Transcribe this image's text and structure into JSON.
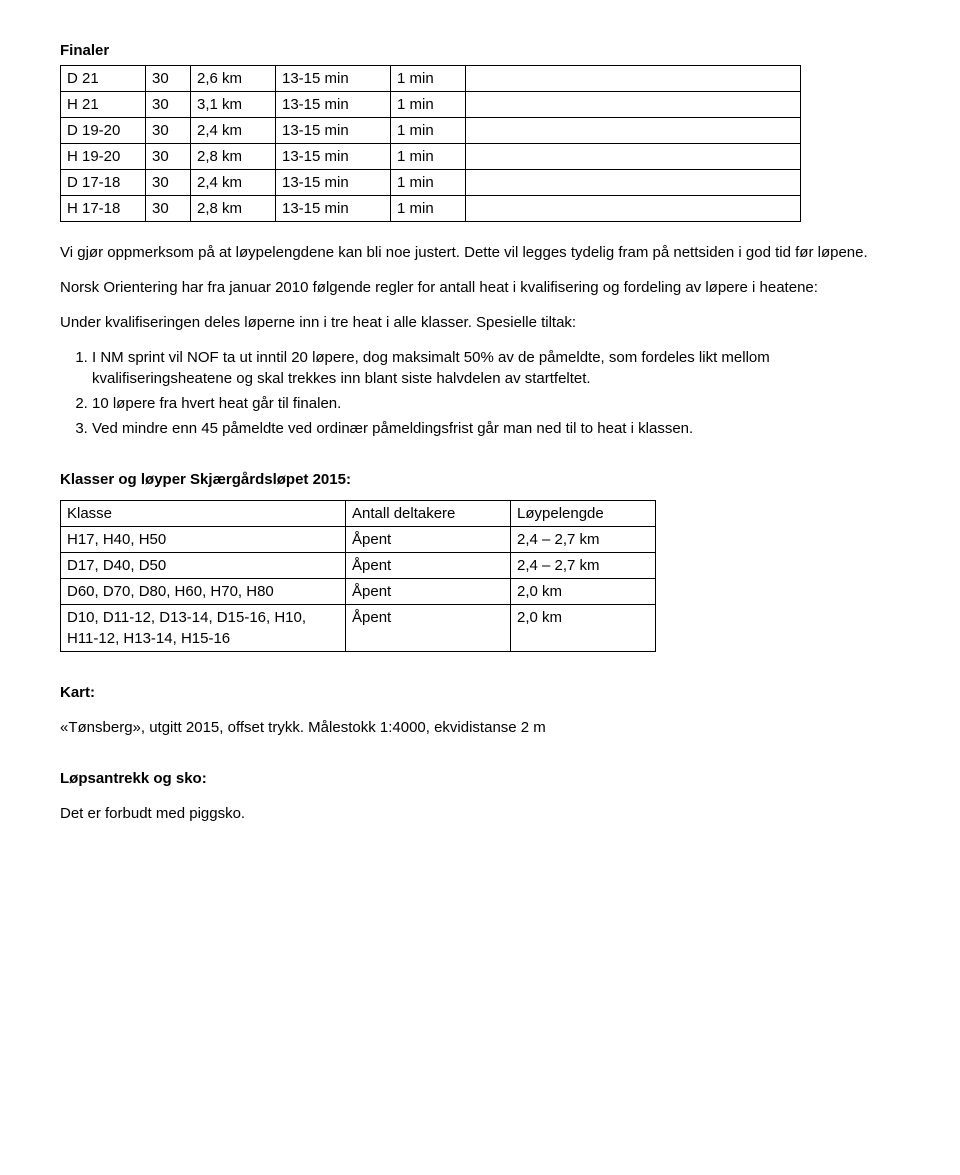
{
  "finaler": {
    "heading": "Finaler",
    "rows": [
      [
        "D 21",
        "30",
        "2,6 km",
        "13-15 min",
        "1 min",
        ""
      ],
      [
        "H 21",
        "30",
        "3,1 km",
        "13-15 min",
        "1 min",
        ""
      ],
      [
        "D 19-20",
        "30",
        "2,4 km",
        "13-15 min",
        "1 min",
        ""
      ],
      [
        "H 19-20",
        "30",
        "2,8 km",
        "13-15 min",
        "1 min",
        ""
      ],
      [
        "D 17-18",
        "30",
        "2,4 km",
        "13-15 min",
        "1 min",
        ""
      ],
      [
        "H 17-18",
        "30",
        "2,8 km",
        "13-15 min",
        "1 min",
        ""
      ]
    ]
  },
  "para1": "Vi gjør oppmerksom på at løypelengdene kan bli noe justert. Dette vil legges tydelig fram på nettsiden i god tid før løpene.",
  "para2": "Norsk Orientering har fra januar 2010 følgende regler for antall heat i kvalifisering og fordeling av løpere i heatene:",
  "para3": "Under kvalifiseringen deles løperne inn i tre heat i alle klasser. Spesielle tiltak:",
  "list": [
    "I NM sprint vil NOF ta ut inntil 20 løpere, dog maksimalt 50% av de påmeldte, som fordeles likt mellom kvalifiseringsheatene og skal trekkes inn blant siste halvdelen av startfeltet.",
    "10 løpere fra hvert heat går til finalen.",
    "Ved mindre enn 45 påmeldte ved ordinær påmeldingsfrist går man ned til to heat i klassen."
  ],
  "klasser": {
    "heading": "Klasser og løyper Skjærgårdsløpet 2015:",
    "header": [
      "Klasse",
      "Antall deltakere",
      "Løypelengde"
    ],
    "rows": [
      [
        "H17, H40, H50",
        "Åpent",
        "2,4 – 2,7 km"
      ],
      [
        "D17, D40, D50",
        "Åpent",
        "2,4 – 2,7 km"
      ],
      [
        "D60, D70, D80, H60, H70, H80",
        "Åpent",
        "2,0 km"
      ],
      [
        "D10, D11-12, D13-14, D15-16, H10, H11-12, H13-14, H15-16",
        "Åpent",
        "2,0 km"
      ]
    ]
  },
  "kart": {
    "heading": "Kart:",
    "text": "«Tønsberg», utgitt 2015, offset trykk. Målestokk 1:4000, ekvidistanse 2 m"
  },
  "sko": {
    "heading": "Løpsantrekk og sko:",
    "text": "Det er forbudt med piggsko."
  }
}
